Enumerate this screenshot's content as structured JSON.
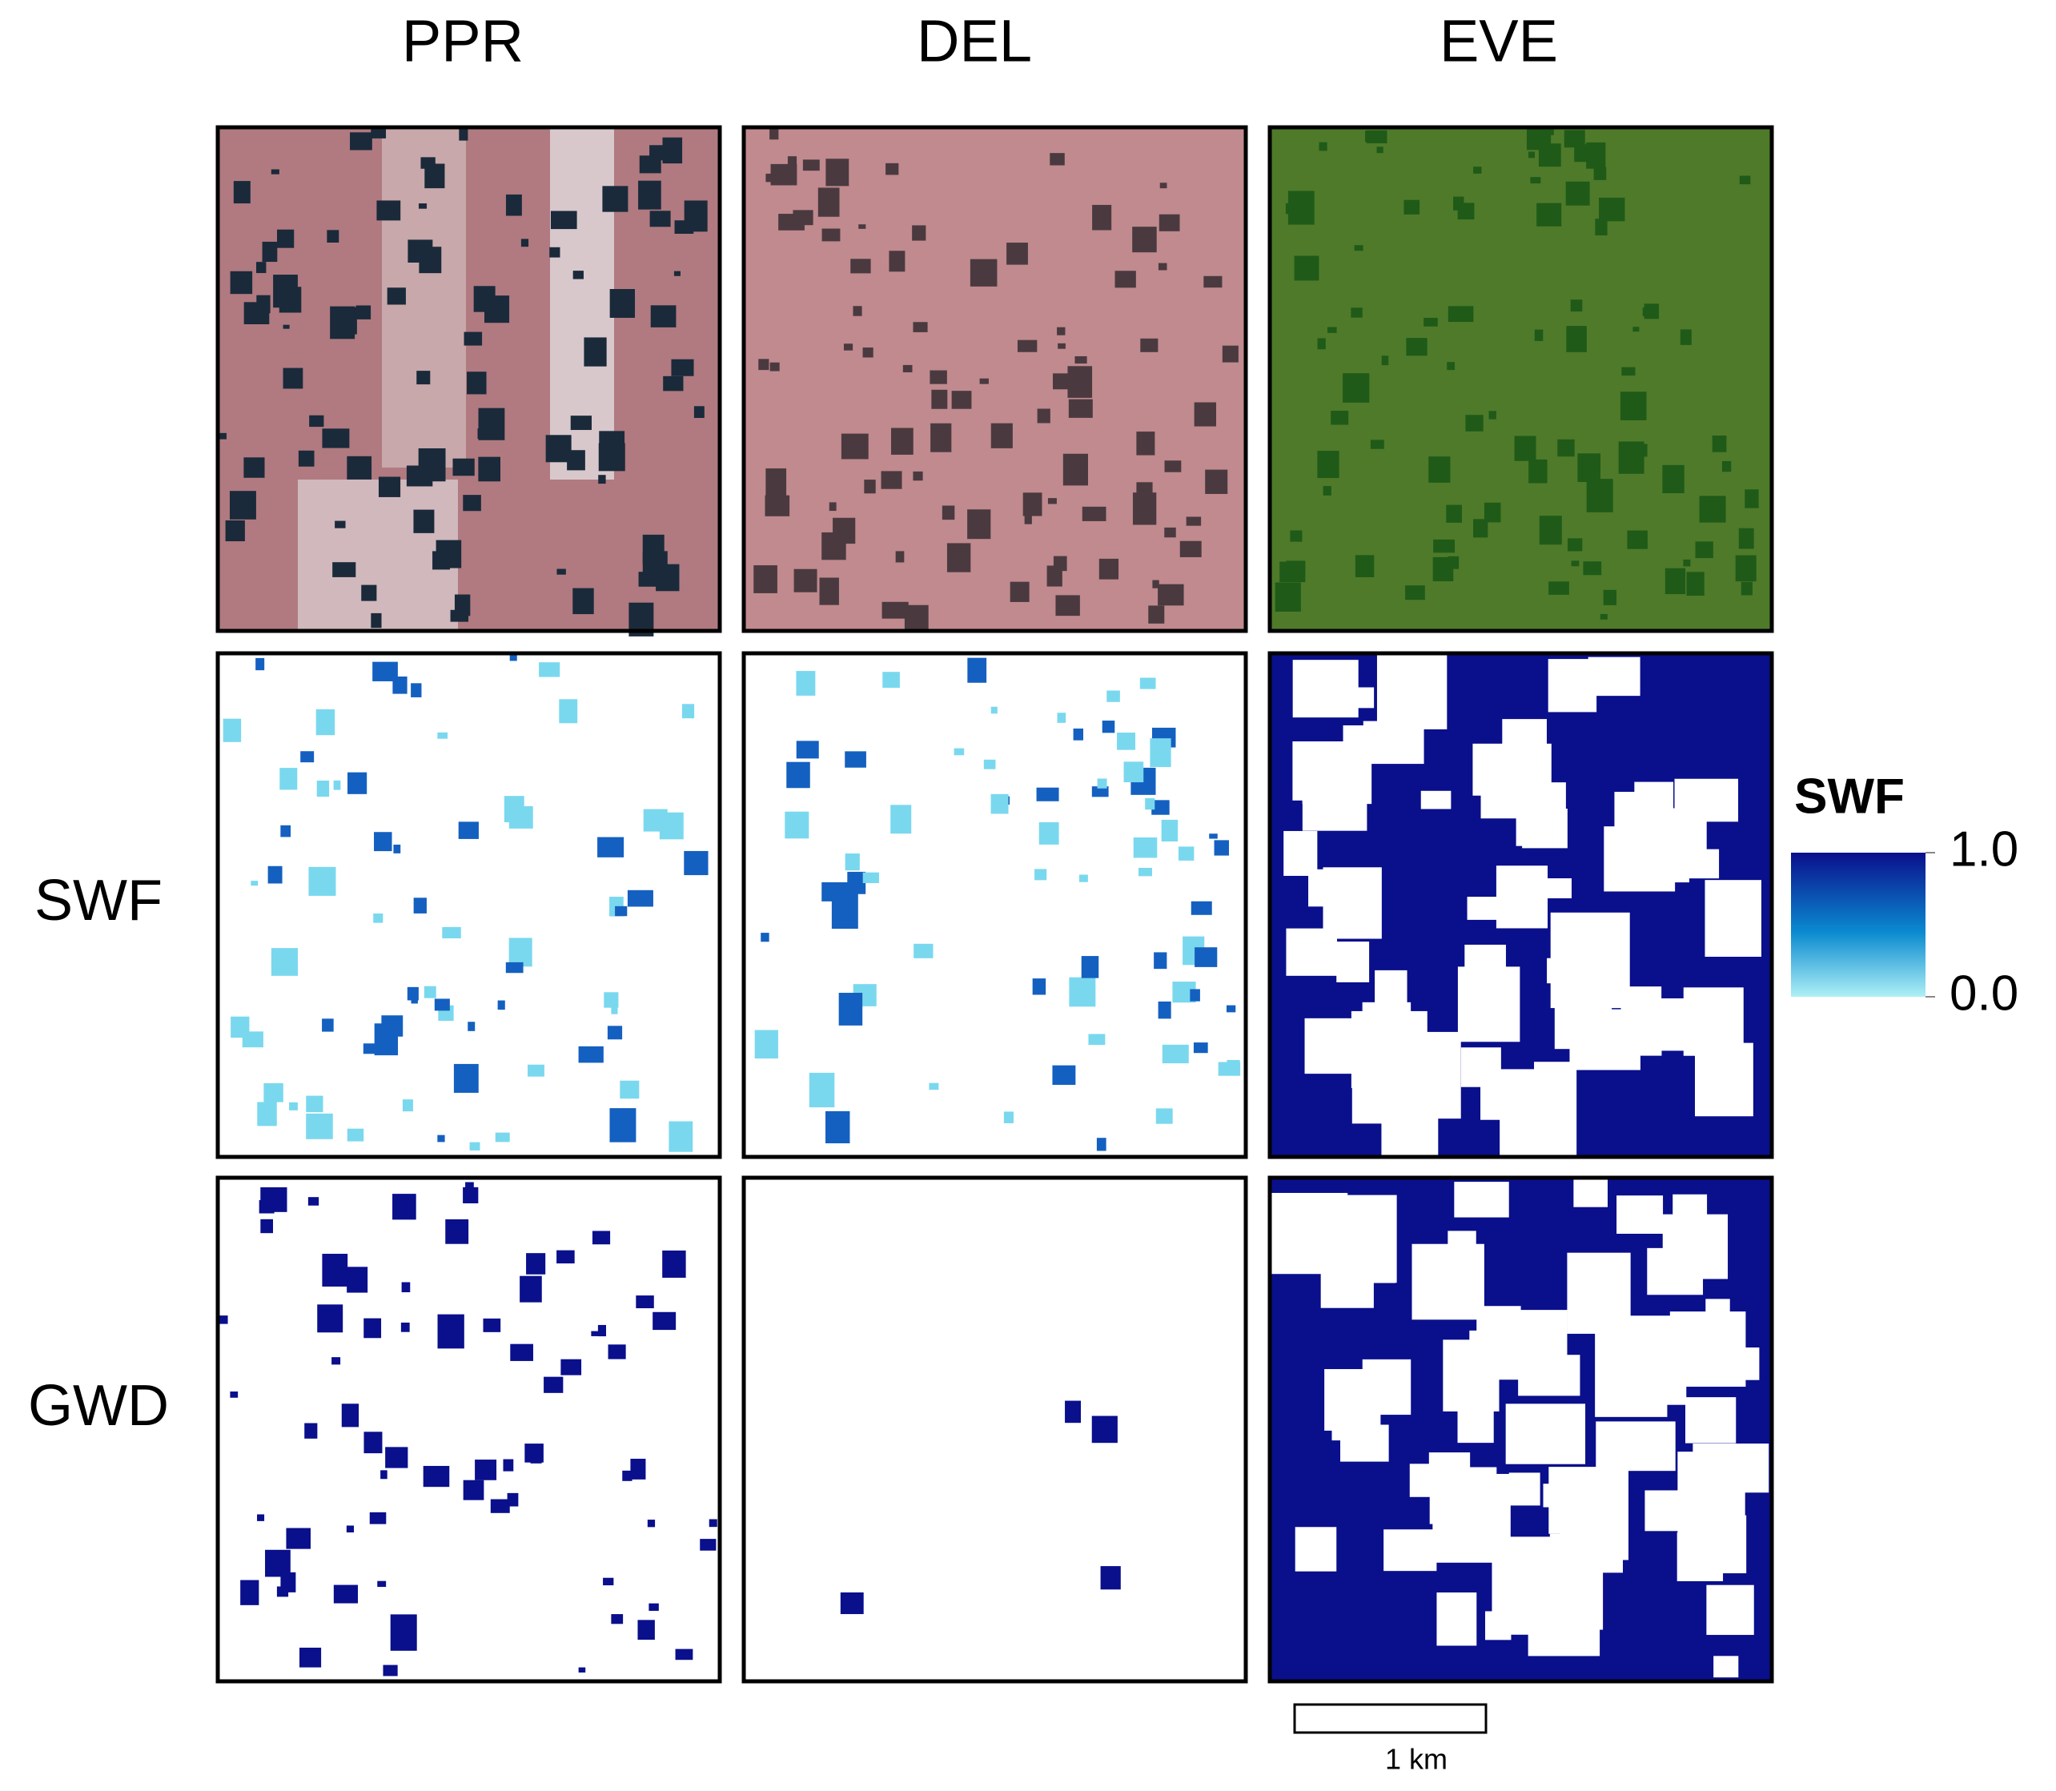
{
  "columns": [
    "PPR",
    "DEL",
    "EVE"
  ],
  "rows": [
    "SWF",
    "GWD"
  ],
  "legend": {
    "title": "SWF",
    "lim": [
      0,
      1
    ],
    "ticks": [
      {
        "value": 0,
        "label": "0.0"
      },
      {
        "value": 1,
        "label": "1.0"
      }
    ]
  },
  "scale_bar": {
    "label": "1 km"
  }
}
